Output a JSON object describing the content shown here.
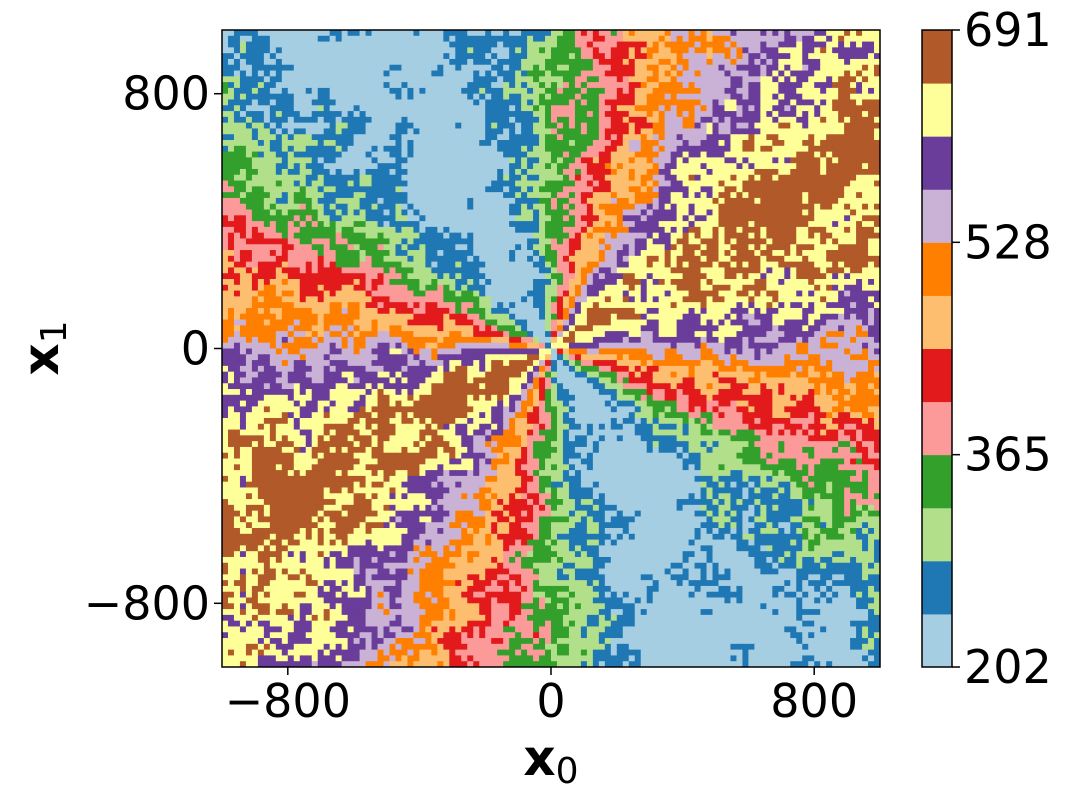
{
  "chart_data": {
    "type": "heatmap",
    "title": "",
    "plot_type": "filled-contour",
    "xlabel": {
      "main": "x",
      "sub": "0"
    },
    "ylabel": {
      "main": "x",
      "sub": "1"
    },
    "xlim": [
      -1000,
      1000
    ],
    "ylim": [
      -1000,
      1000
    ],
    "x_ticks": [
      {
        "value": -800,
        "label": "−800"
      },
      {
        "value": 0,
        "label": "0"
      },
      {
        "value": 800,
        "label": "800"
      }
    ],
    "y_ticks": [
      {
        "value": 800,
        "label": "800"
      },
      {
        "value": 0,
        "label": "0"
      },
      {
        "value": -800,
        "label": "−800"
      }
    ],
    "grid": false,
    "pattern": "radial sectors around origin; value varies with angle, period 180 degrees",
    "colorbar": {
      "placement": "right",
      "vmin": 202,
      "vmax": 691,
      "levels": 12,
      "tick_values": [
        202,
        365,
        528,
        691
      ],
      "tick_labels": [
        "202",
        "365",
        "528",
        "691"
      ],
      "colors": [
        "#a6cee3",
        "#1f78b4",
        "#b2df8a",
        "#33a02c",
        "#fb9a99",
        "#e31a1c",
        "#fdbf6f",
        "#ff7f00",
        "#cab2d6",
        "#6a3d9a",
        "#ffff99",
        "#b15928"
      ]
    }
  }
}
